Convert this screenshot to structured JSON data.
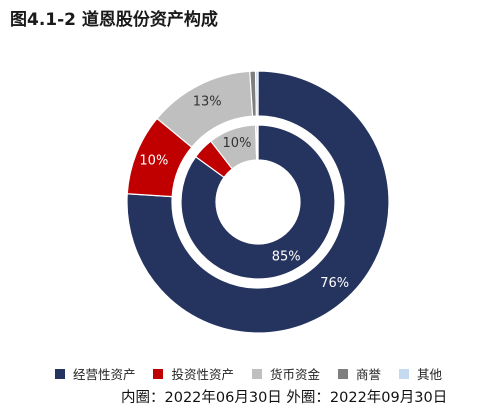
{
  "title": "图4.1-2 道恩股份资产构成",
  "note": "内圈：2022年06月30日 外圈：2022年09月30日",
  "chart_data": {
    "type": "pie",
    "subtype": "double-donut",
    "categories": [
      "经营性资产",
      "投资性资产",
      "货币资金",
      "商誉",
      "其他"
    ],
    "colors": [
      "#25335f",
      "#c00000",
      "#bfbfbf",
      "#7f7f7f",
      "#c5d9f1"
    ],
    "series": [
      {
        "ring": "inner",
        "values": [
          85,
          4.5,
          10,
          0.3,
          0.2
        ],
        "labels": [
          "85%",
          "",
          "10%",
          "",
          ""
        ]
      },
      {
        "ring": "outer",
        "values": [
          76,
          10,
          13,
          0.7,
          0.3
        ],
        "labels": [
          "76%",
          "10%",
          "13%",
          "",
          ""
        ]
      }
    ],
    "legend_position": "bottom"
  }
}
